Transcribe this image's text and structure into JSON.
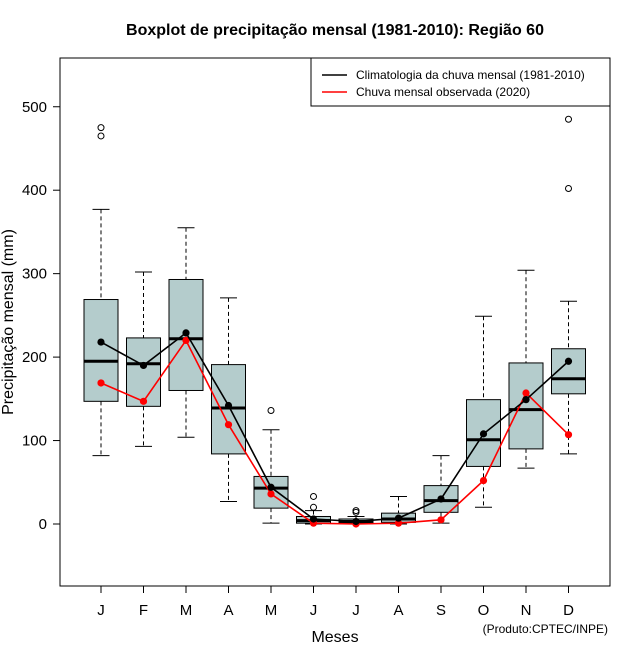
{
  "chart_data": {
    "type": "boxplot",
    "title": "Boxplot de precipitação mensal (1981-2010): Região 60",
    "xlabel": "Meses",
    "ylabel": "Precipitação mensal (mm)",
    "ylim": [
      -75,
      545
    ],
    "yticks": [
      0,
      100,
      200,
      300,
      400,
      500
    ],
    "categories": [
      "J",
      "F",
      "M",
      "A",
      "M",
      "J",
      "J",
      "A",
      "S",
      "O",
      "N",
      "D"
    ],
    "boxes": [
      {
        "min": 82,
        "q1": 147,
        "median": 195,
        "q3": 269,
        "max": 377,
        "outliers": [
          465,
          475
        ]
      },
      {
        "min": 93,
        "q1": 141,
        "median": 192,
        "q3": 223,
        "max": 302,
        "outliers": []
      },
      {
        "min": 104,
        "q1": 160,
        "median": 222,
        "q3": 293,
        "max": 355,
        "outliers": []
      },
      {
        "min": 27,
        "q1": 84,
        "median": 139,
        "q3": 191,
        "max": 271,
        "outliers": []
      },
      {
        "min": 1,
        "q1": 19,
        "median": 43,
        "q3": 57,
        "max": 113,
        "outliers": [
          136
        ]
      },
      {
        "min": 0,
        "q1": 1,
        "median": 4,
        "q3": 9,
        "max": 16,
        "outliers": [
          20,
          33
        ]
      },
      {
        "min": 0,
        "q1": 1,
        "median": 3,
        "q3": 6,
        "max": 9,
        "outliers": [
          14,
          16
        ]
      },
      {
        "min": 0,
        "q1": 2,
        "median": 6,
        "q3": 13,
        "max": 33,
        "outliers": []
      },
      {
        "min": 1,
        "q1": 14,
        "median": 28,
        "q3": 46,
        "max": 82,
        "outliers": []
      },
      {
        "min": 20,
        "q1": 69,
        "median": 101,
        "q3": 149,
        "max": 249,
        "outliers": []
      },
      {
        "min": 67,
        "q1": 90,
        "median": 137,
        "q3": 193,
        "max": 304,
        "outliers": []
      },
      {
        "min": 84,
        "q1": 156,
        "median": 174,
        "q3": 210,
        "max": 267,
        "outliers": [
          402,
          485
        ]
      }
    ],
    "series": [
      {
        "name": "Climatologia da chuva mensal (1981-2010)",
        "color": "#000000",
        "values": [
          218,
          190,
          229,
          142,
          44,
          6,
          3,
          7,
          30,
          108,
          149,
          195
        ]
      },
      {
        "name": "Chuva mensal observada (2020)",
        "color": "#ff0000",
        "values": [
          169,
          147,
          220,
          119,
          36,
          1,
          0,
          1,
          5,
          52,
          157,
          107
        ]
      }
    ],
    "box_fill": "#b4cccc",
    "legend_position": "top-right",
    "footnote": "(Produto:CPTEC/INPE)"
  }
}
